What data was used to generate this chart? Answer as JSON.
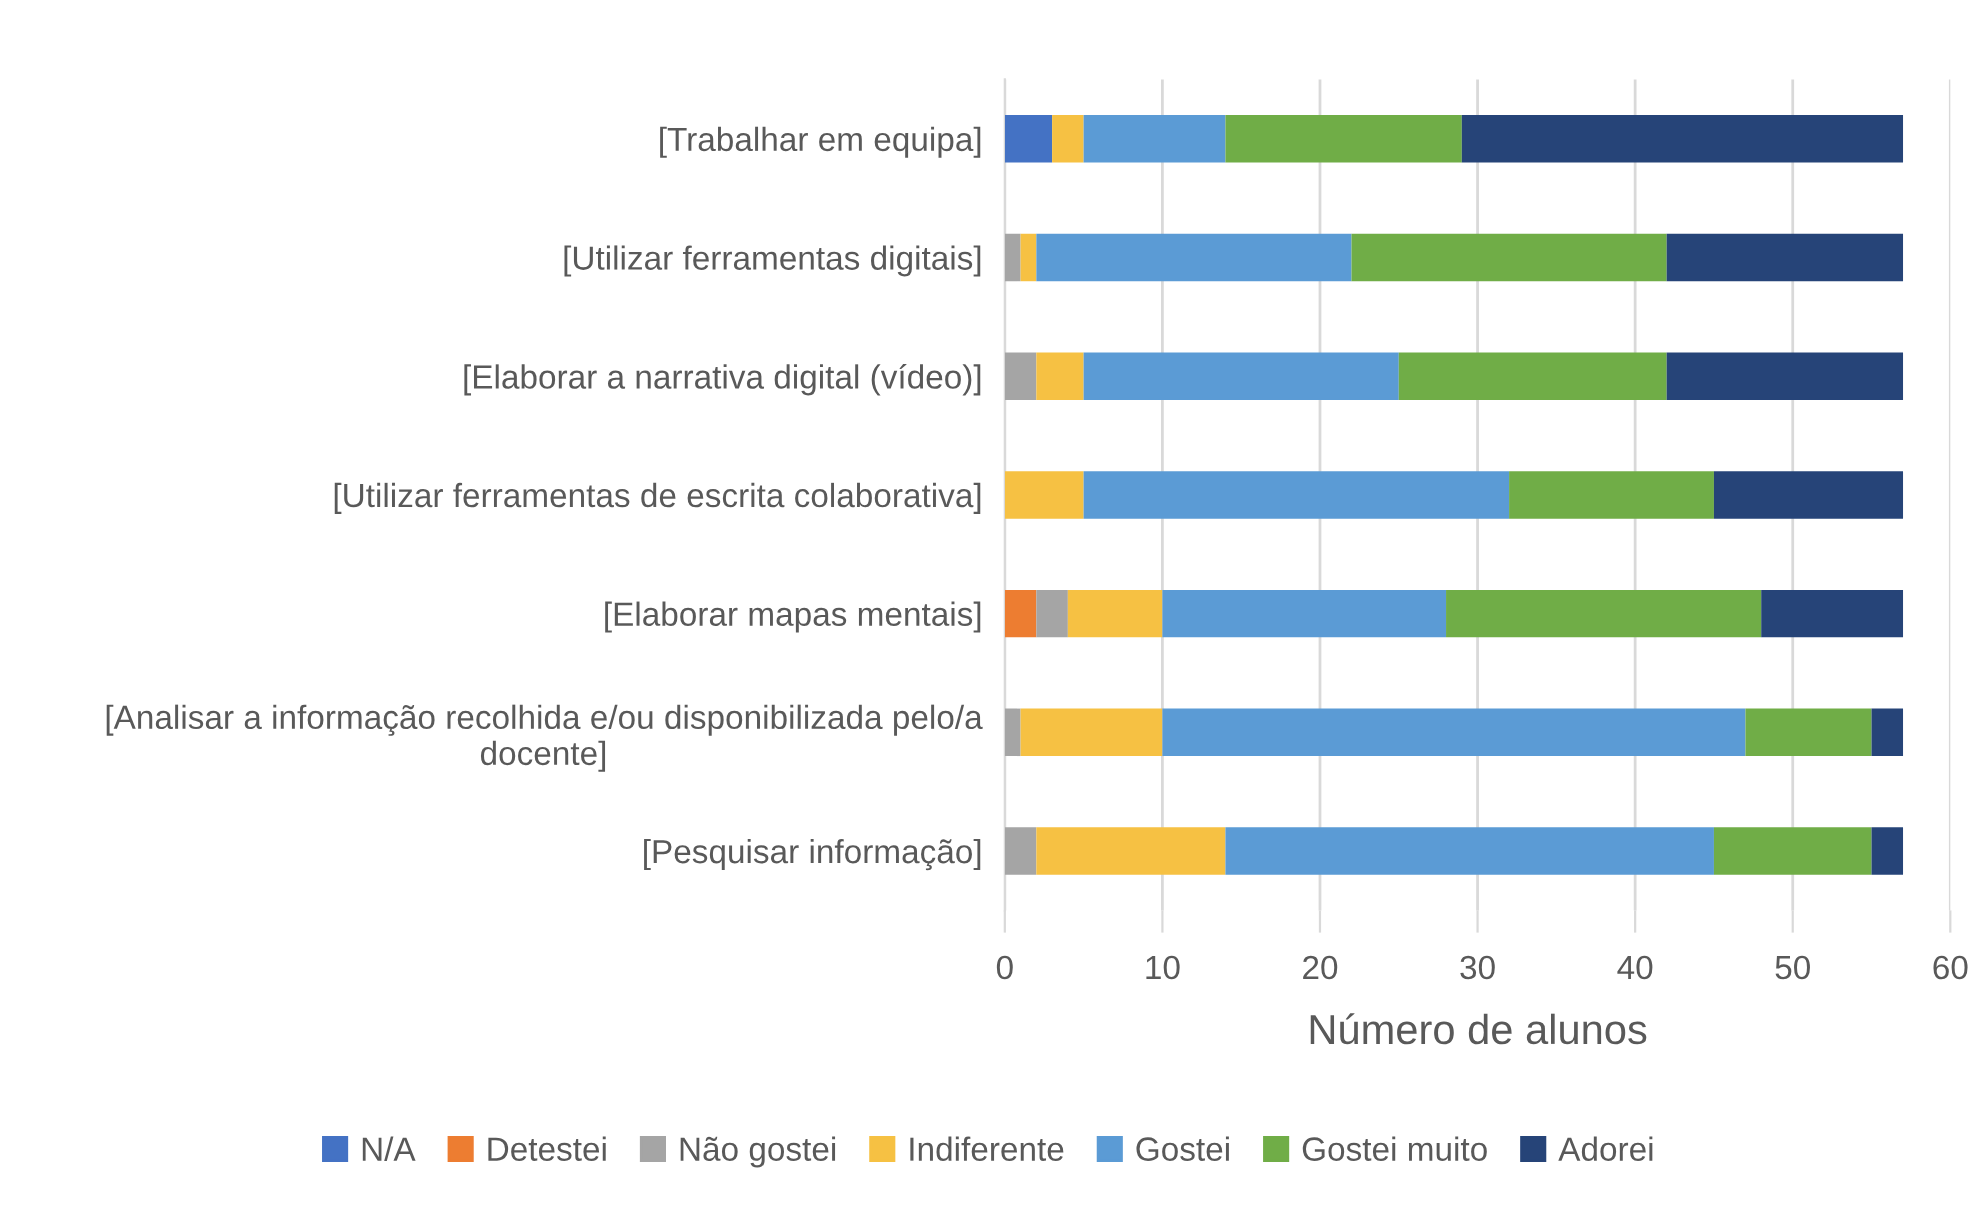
{
  "chart_data": {
    "type": "bar",
    "orientation": "horizontal",
    "stacked": true,
    "xlabel": "Número de alunos",
    "categories": [
      "[Trabalhar em equipa]",
      "[Utilizar ferramentas digitais]",
      "[Elaborar a narrativa digital (vídeo)]",
      "[Utilizar ferramentas de escrita colaborativa]",
      "[Elaborar mapas mentais]",
      "[Analisar a informação recolhida e/ou disponibilizada pelo/a\ndocente]",
      "[Pesquisar informação]"
    ],
    "series": [
      {
        "name": "N/A",
        "color": "#4472c4",
        "values": [
          3,
          0,
          0,
          0,
          0,
          0,
          0
        ]
      },
      {
        "name": "Detestei",
        "color": "#ed7d31",
        "values": [
          0,
          0,
          0,
          0,
          2,
          0,
          0
        ]
      },
      {
        "name": "Não gostei",
        "color": "#a5a5a5",
        "values": [
          0,
          1,
          2,
          0,
          2,
          1,
          2
        ]
      },
      {
        "name": "Indiferente",
        "color": "#f6c143",
        "values": [
          2,
          1,
          3,
          5,
          6,
          9,
          12
        ]
      },
      {
        "name": "Gostei",
        "color": "#5b9bd5",
        "values": [
          9,
          20,
          20,
          27,
          18,
          37,
          31
        ]
      },
      {
        "name": "Gostei muito",
        "color": "#70ad47",
        "values": [
          15,
          20,
          17,
          13,
          20,
          8,
          10
        ]
      },
      {
        "name": "Adorei",
        "color": "#264478",
        "values": [
          28,
          15,
          15,
          12,
          9,
          2,
          2
        ]
      }
    ],
    "xlim": [
      0,
      60
    ],
    "xticks": [
      0,
      10,
      20,
      30,
      40,
      50,
      60
    ],
    "grid": "x",
    "legend": "bottom"
  }
}
